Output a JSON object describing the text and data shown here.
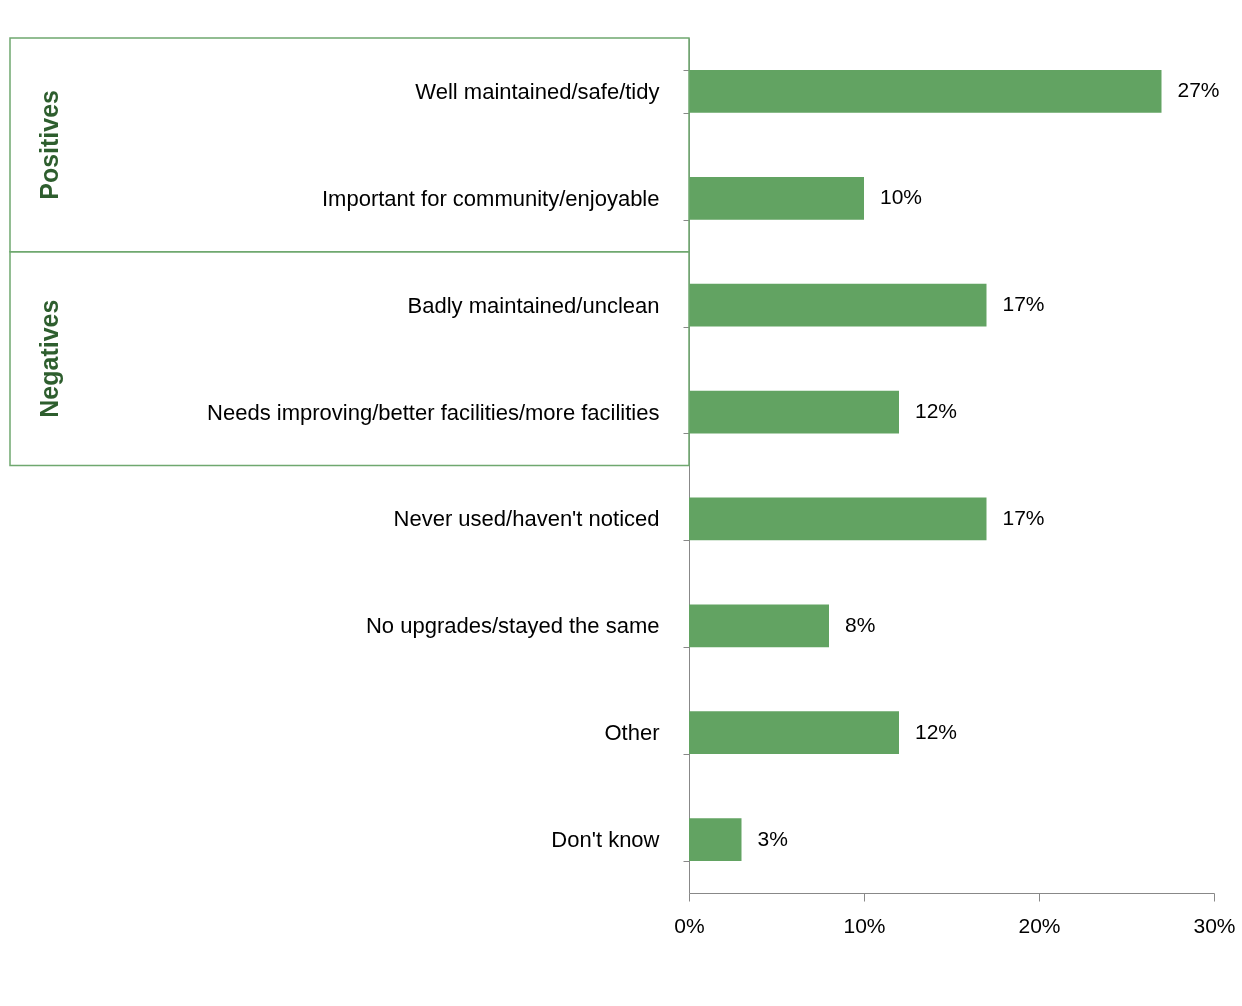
{
  "chart_data": {
    "type": "bar",
    "orientation": "horizontal",
    "categories": [
      "Well maintained/safe/tidy",
      "Important for community/enjoyable",
      "Badly maintained/unclean",
      "Needs improving/better facilities/more facilities",
      "Never used/haven't noticed",
      "No upgrades/stayed the same",
      "Other",
      "Don't know"
    ],
    "values": [
      27,
      10,
      17,
      12,
      17,
      8,
      12,
      3
    ],
    "value_labels": [
      "27%",
      "10%",
      "17%",
      "12%",
      "17%",
      "8%",
      "12%",
      "3%"
    ],
    "color": "#62a362",
    "xlim": [
      0,
      30
    ],
    "xticks": [
      {
        "value": 0,
        "label": "0%"
      },
      {
        "value": 10,
        "label": "10%"
      },
      {
        "value": 20,
        "label": "20%"
      },
      {
        "value": 30,
        "label": "30%"
      }
    ],
    "annotations": [
      "Positives",
      "Negatives"
    ],
    "grid": false
  }
}
